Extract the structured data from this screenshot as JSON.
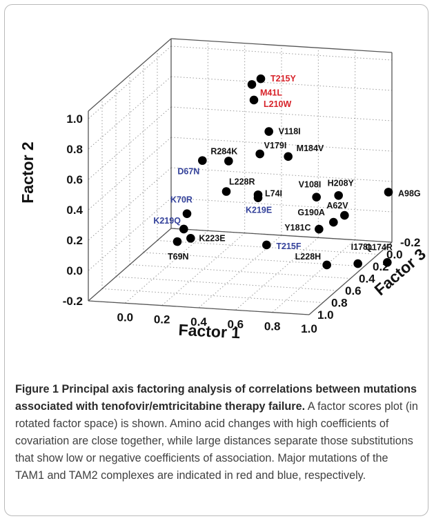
{
  "chart_data": {
    "type": "scatter",
    "projection": "3d",
    "xlabel": "Factor 1",
    "ylabel": "Factor 2",
    "zlabel": "Factor 3",
    "x_ticks": [
      "0.0",
      "0.2",
      "0.4",
      "0.6",
      "0.8",
      "1.0"
    ],
    "y_ticks": [
      "-0.2",
      "0.0",
      "0.2",
      "0.4",
      "0.6",
      "0.8",
      "1.0"
    ],
    "z_ticks": [
      "-0.2",
      "0.0",
      "0.2",
      "0.4",
      "0.6",
      "0.8",
      "1.0"
    ],
    "xlim": [
      -0.2,
      1.0
    ],
    "ylim": [
      -0.2,
      1.05
    ],
    "zlim": [
      -0.2,
      1.0
    ],
    "colors": {
      "TAM1": "#d7232a",
      "TAM2": "#33419a",
      "other": "#111111"
    },
    "points": [
      {
        "label": "T215Y",
        "group": "TAM1",
        "x": 0.25,
        "y": 0.78,
        "z": -0.3
      },
      {
        "label": "M41L",
        "group": "TAM1",
        "x": 0.22,
        "y": 0.76,
        "z": -0.25
      },
      {
        "label": "L210W",
        "group": "TAM1",
        "x": 0.25,
        "y": 0.68,
        "z": -0.2
      },
      {
        "label": "V118I",
        "group": "other",
        "x": 0.35,
        "y": 0.5,
        "z": -0.15
      },
      {
        "label": "V179I",
        "group": "other",
        "x": 0.32,
        "y": 0.37,
        "z": -0.1
      },
      {
        "label": "M184V",
        "group": "other",
        "x": 0.47,
        "y": 0.36,
        "z": -0.11
      },
      {
        "label": "R284K",
        "group": "other",
        "x": 0.15,
        "y": 0.31,
        "z": -0.1
      },
      {
        "label": "D67N",
        "group": "TAM2",
        "x": -0.03,
        "y": 0.26,
        "z": -0.2
      },
      {
        "label": "L228R",
        "group": "other",
        "x": 0.13,
        "y": 0.1,
        "z": -0.12
      },
      {
        "label": "L74I",
        "group": "other",
        "x": 0.31,
        "y": 0.1,
        "z": -0.1
      },
      {
        "label": "K219E",
        "group": "TAM2",
        "x": 0.31,
        "y": 0.08,
        "z": -0.1
      },
      {
        "label": "V108I",
        "group": "other",
        "x": 0.62,
        "y": 0.1,
        "z": -0.12
      },
      {
        "label": "H208Y",
        "group": "other",
        "x": 0.74,
        "y": 0.12,
        "z": -0.12
      },
      {
        "label": "A98G",
        "group": "other",
        "x": 1.0,
        "y": 0.15,
        "z": -0.15
      },
      {
        "label": "A62V",
        "group": "other",
        "x": 0.78,
        "y": 0.0,
        "z": -0.1
      },
      {
        "label": "G190A",
        "group": "other",
        "x": 0.72,
        "y": -0.05,
        "z": -0.1
      },
      {
        "label": "Y181C",
        "group": "other",
        "x": 0.66,
        "y": -0.08,
        "z": -0.05
      },
      {
        "label": "L228H",
        "group": "other",
        "x": 0.74,
        "y": -0.27,
        "z": 0.05
      },
      {
        "label": "I178L",
        "group": "other",
        "x": 0.89,
        "y": -0.27,
        "z": 0.0
      },
      {
        "label": "Q174R",
        "group": "other",
        "x": 1.05,
        "y": -0.25,
        "z": 0.0
      },
      {
        "label": "K70R",
        "group": "TAM2",
        "x": -0.02,
        "y": 0.01,
        "z": 0.05
      },
      {
        "label": "K219Q",
        "group": "TAM2",
        "x": 0.0,
        "y": -0.05,
        "z": 0.15
      },
      {
        "label": "T69N",
        "group": "other",
        "x": 0.04,
        "y": -0.05,
        "z": 0.35
      },
      {
        "label": "K223E",
        "group": "other",
        "x": 0.15,
        "y": 0.02,
        "z": 0.45
      },
      {
        "label": "T215F",
        "group": "TAM2",
        "x": 0.6,
        "y": 0.05,
        "z": 0.55
      }
    ]
  },
  "caption": {
    "title": "Figure 1 Principal axis factoring analysis of correlations between mutations associated with tenofovir/emtricitabine therapy failure.",
    "body": " A factor scores plot (in rotated factor space) is shown. Amino acid changes with high coefficients of covariation are close together, while large distances separate those substitutions that show low or negative coefficients of association. Major mutations of the TAM1 and TAM2 complexes are indicated in red and blue, respectively."
  }
}
